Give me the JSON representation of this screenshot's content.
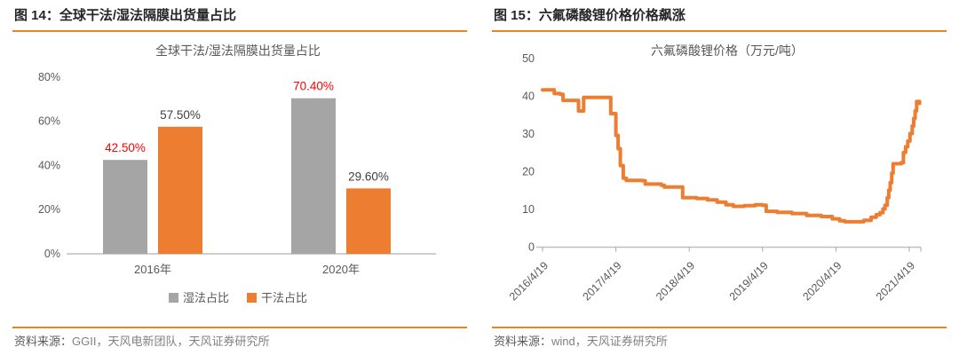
{
  "page": {
    "background": "#ffffff",
    "accent_orange": "#ED7D31",
    "rule_color": "#F0841C",
    "axis_color": "#BFBFBF",
    "text_gray": "#595959"
  },
  "left_panel": {
    "header": "图 14：全球干法/湿法隔膜出货量占比",
    "source_label": "资料来源：",
    "source_text": "GGII，天风电新团队，天风证券研究所"
  },
  "right_panel": {
    "header": "图 15：六氟磷酸锂价格价格飙涨",
    "source_label": "资料来源：",
    "source_text": "wind，天风证券研究所"
  },
  "chart_data": [
    {
      "type": "bar",
      "title": "全球干法/湿法隔膜出货量占比",
      "title_color": "#595959",
      "categories": [
        "2016年",
        "2020年"
      ],
      "series": [
        {
          "name": "湿法占比",
          "color": "#A5A5A5",
          "values": [
            42.5,
            70.4
          ],
          "labels": [
            "42.50%",
            "70.40%"
          ],
          "label_color": "#FF0000"
        },
        {
          "name": "干法占比",
          "color": "#ED7D31",
          "values": [
            57.5,
            29.6
          ],
          "labels": [
            "57.50%",
            "29.60%"
          ],
          "label_color": "#404040"
        }
      ],
      "ylim": [
        0,
        80
      ],
      "ytick_step": 20,
      "ytick_labels": [
        "0%",
        "20%",
        "40%",
        "60%",
        "80%"
      ],
      "grid": false,
      "legend_position": "bottom"
    },
    {
      "type": "line",
      "title": "六氟磷酸锂价格（万元/吨）",
      "title_color": "#595959",
      "series_name": "六氟磷酸锂价格",
      "color": "#ED7D31",
      "ylim": [
        0,
        50
      ],
      "ytick_step": 10,
      "ytick_labels": [
        "0",
        "10",
        "20",
        "30",
        "40",
        "50"
      ],
      "x_unit": "years_since_first_tick",
      "xlim": [
        0,
        5.2
      ],
      "xtick_positions": [
        0,
        1,
        2,
        3,
        4,
        5
      ],
      "xtick_labels": [
        "2016/4/19",
        "2017/4/19",
        "2018/4/19",
        "2019/4/19",
        "2020/4/19",
        "2021/4/19"
      ],
      "grid": false,
      "interpolation": "step-after",
      "points": [
        [
          0,
          41.6
        ],
        [
          0.13,
          41.6
        ],
        [
          0.16,
          40.6
        ],
        [
          0.24,
          40.4
        ],
        [
          0.28,
          38.8
        ],
        [
          0.46,
          38.8
        ],
        [
          0.49,
          36
        ],
        [
          0.53,
          36
        ],
        [
          0.56,
          39.6
        ],
        [
          0.9,
          39.6
        ],
        [
          0.93,
          35.3
        ],
        [
          0.97,
          35.3
        ],
        [
          1,
          29.5
        ],
        [
          1.03,
          26
        ],
        [
          1.06,
          21.5
        ],
        [
          1.1,
          18.2
        ],
        [
          1.14,
          17.6
        ],
        [
          1.36,
          17.5
        ],
        [
          1.4,
          16.6
        ],
        [
          1.62,
          16.3
        ],
        [
          1.66,
          15.8
        ],
        [
          1.87,
          15.8
        ],
        [
          1.91,
          13
        ],
        [
          2.1,
          12.8
        ],
        [
          2.25,
          12.4
        ],
        [
          2.38,
          11.8
        ],
        [
          2.5,
          11.1
        ],
        [
          2.6,
          10.7
        ],
        [
          2.75,
          10.9
        ],
        [
          2.9,
          11.1
        ],
        [
          3,
          11
        ],
        [
          3.05,
          9.4
        ],
        [
          3.2,
          9.1
        ],
        [
          3.4,
          8.8
        ],
        [
          3.6,
          8.3
        ],
        [
          3.8,
          8
        ],
        [
          3.95,
          7.4
        ],
        [
          4.05,
          6.9
        ],
        [
          4.12,
          6.6
        ],
        [
          4.28,
          6.6
        ],
        [
          4.38,
          7
        ],
        [
          4.48,
          7.8
        ],
        [
          4.55,
          8.5
        ],
        [
          4.6,
          9
        ],
        [
          4.64,
          10
        ],
        [
          4.67,
          11
        ],
        [
          4.7,
          13
        ],
        [
          4.72,
          15
        ],
        [
          4.74,
          17
        ],
        [
          4.76,
          19.5
        ],
        [
          4.78,
          22
        ],
        [
          4.89,
          22.3
        ],
        [
          4.92,
          25
        ],
        [
          4.95,
          26.5
        ],
        [
          4.98,
          28
        ],
        [
          5.01,
          30
        ],
        [
          5.04,
          32
        ],
        [
          5.06,
          34
        ],
        [
          5.08,
          36
        ],
        [
          5.1,
          38.5
        ],
        [
          5.14,
          38
        ]
      ]
    }
  ]
}
